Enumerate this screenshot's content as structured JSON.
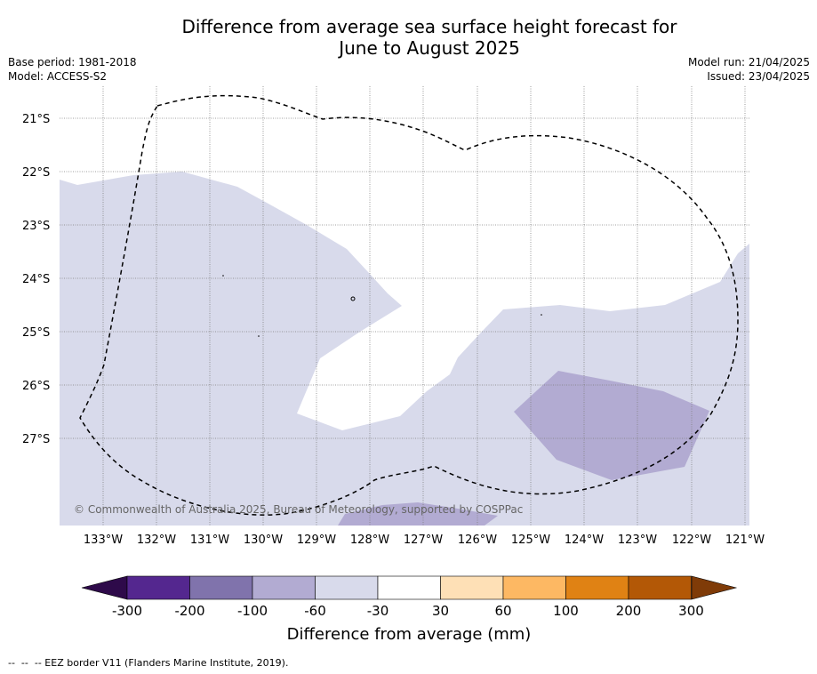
{
  "title_line1": "Difference from average sea surface height forecast for",
  "title_line2": "June to August 2025",
  "base_period": "Base period: 1981-2018",
  "model": "Model: ACCESS-S2",
  "model_run": "Model run: 21/04/2025",
  "issued": "Issued: 23/04/2025",
  "lat_labels": [
    "21°S",
    "22°S",
    "23°S",
    "24°S",
    "25°S",
    "26°S",
    "27°S"
  ],
  "lon_labels": [
    "133°W",
    "132°W",
    "131°W",
    "130°W",
    "129°W",
    "128°W",
    "127°W",
    "126°W",
    "125°W",
    "124°W",
    "123°W",
    "122°W",
    "121°W"
  ],
  "copyright": "© Commonwealth of Australia 2025, Bureau of Meteorology, supported by COSPPac",
  "colorbar": {
    "label": "Difference from average (mm)",
    "ticks": [
      "-300",
      "-200",
      "-100",
      "-60",
      "-30",
      "30",
      "60",
      "100",
      "200",
      "300"
    ],
    "colors": [
      "#2e0a4a",
      "#54278f",
      "#8073ac",
      "#b2abd2",
      "#d8daeb",
      "#ffffff",
      "#fee0b6",
      "#fdb863",
      "#e08214",
      "#b35806",
      "#7f3b08"
    ]
  },
  "legend_footer": "--  --  -- EEZ border V11 (Flanders Marine Institute, 2019)."
}
